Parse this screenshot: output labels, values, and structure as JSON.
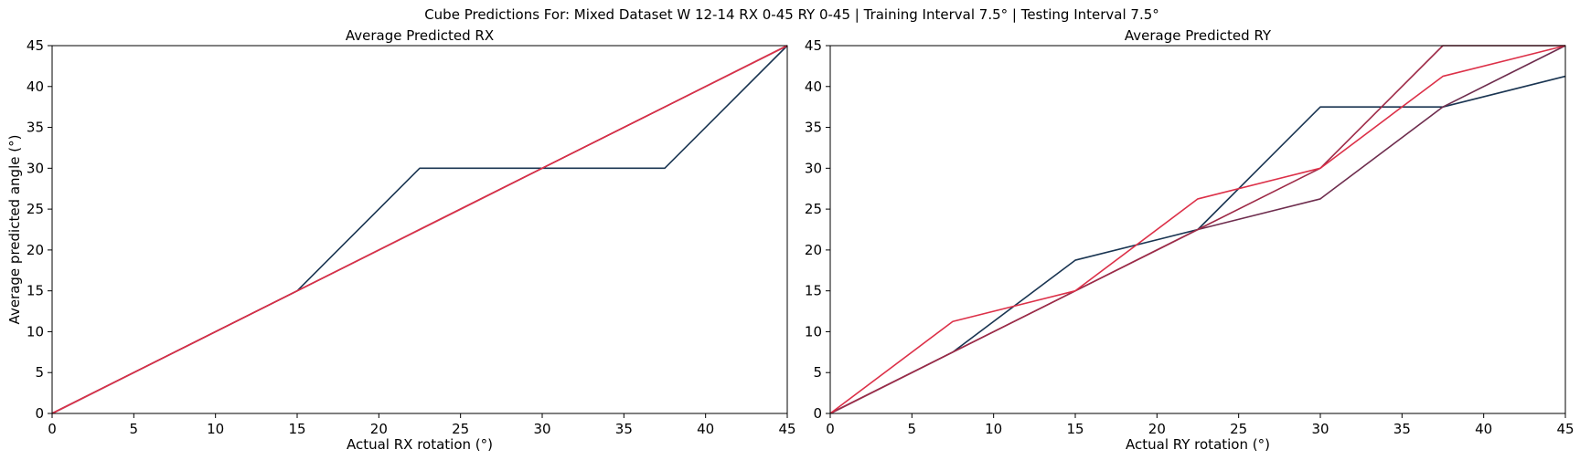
{
  "figure": {
    "suptitle": "Cube Predictions For: Mixed Dataset W 12-14 RX 0-45 RY 0-45 | Training Interval 7.5° | Testing Interval 7.5°"
  },
  "chart_data": [
    {
      "type": "line",
      "title": "Average Predicted RX",
      "xlabel": "Actual RX rotation (°)",
      "ylabel": "Average predicted angle (°)",
      "xlim": [
        0,
        45
      ],
      "ylim": [
        0,
        45
      ],
      "xticks": [
        "0",
        "5",
        "10",
        "15",
        "20",
        "25",
        "30",
        "35",
        "40",
        "45"
      ],
      "yticks": [
        "0",
        "5",
        "10",
        "15",
        "20",
        "25",
        "30",
        "35",
        "40",
        "45"
      ],
      "grid": false,
      "x": [
        0,
        7.5,
        15,
        22.5,
        30,
        37.5,
        45
      ],
      "series": [
        {
          "color": "#1a3552",
          "values": [
            0,
            7.5,
            15,
            30,
            30,
            30,
            45
          ]
        },
        {
          "color": "#6e2d4e",
          "values": [
            0,
            7.5,
            15,
            22.5,
            30,
            37.5,
            45
          ]
        },
        {
          "color": "#9e2a47",
          "values": [
            0,
            7.5,
            15,
            22.5,
            30,
            37.5,
            45
          ]
        },
        {
          "color": "#dc3048",
          "values": [
            0,
            7.5,
            15,
            22.5,
            30,
            37.5,
            45
          ]
        }
      ]
    },
    {
      "type": "line",
      "title": "Average Predicted RY",
      "xlabel": "Actual RY rotation (°)",
      "ylabel": "",
      "xlim": [
        0,
        45
      ],
      "ylim": [
        0,
        45
      ],
      "xticks": [
        "0",
        "5",
        "10",
        "15",
        "20",
        "25",
        "30",
        "35",
        "40",
        "45"
      ],
      "yticks": [
        "0",
        "5",
        "10",
        "15",
        "20",
        "25",
        "30",
        "35",
        "40",
        "45"
      ],
      "grid": false,
      "x": [
        0,
        7.5,
        15,
        22.5,
        30,
        37.5,
        45
      ],
      "series": [
        {
          "color": "#1a3552",
          "values": [
            0,
            7.5,
            18.75,
            22.5,
            37.5,
            37.5,
            41.25
          ]
        },
        {
          "color": "#6e2d4e",
          "values": [
            0,
            7.5,
            15,
            22.5,
            26.25,
            37.5,
            45
          ]
        },
        {
          "color": "#9e2a47",
          "values": [
            0,
            7.5,
            15,
            22.5,
            30,
            45,
            45
          ]
        },
        {
          "color": "#dc3048",
          "values": [
            0,
            11.25,
            15,
            26.25,
            30,
            41.25,
            45
          ]
        }
      ]
    }
  ]
}
